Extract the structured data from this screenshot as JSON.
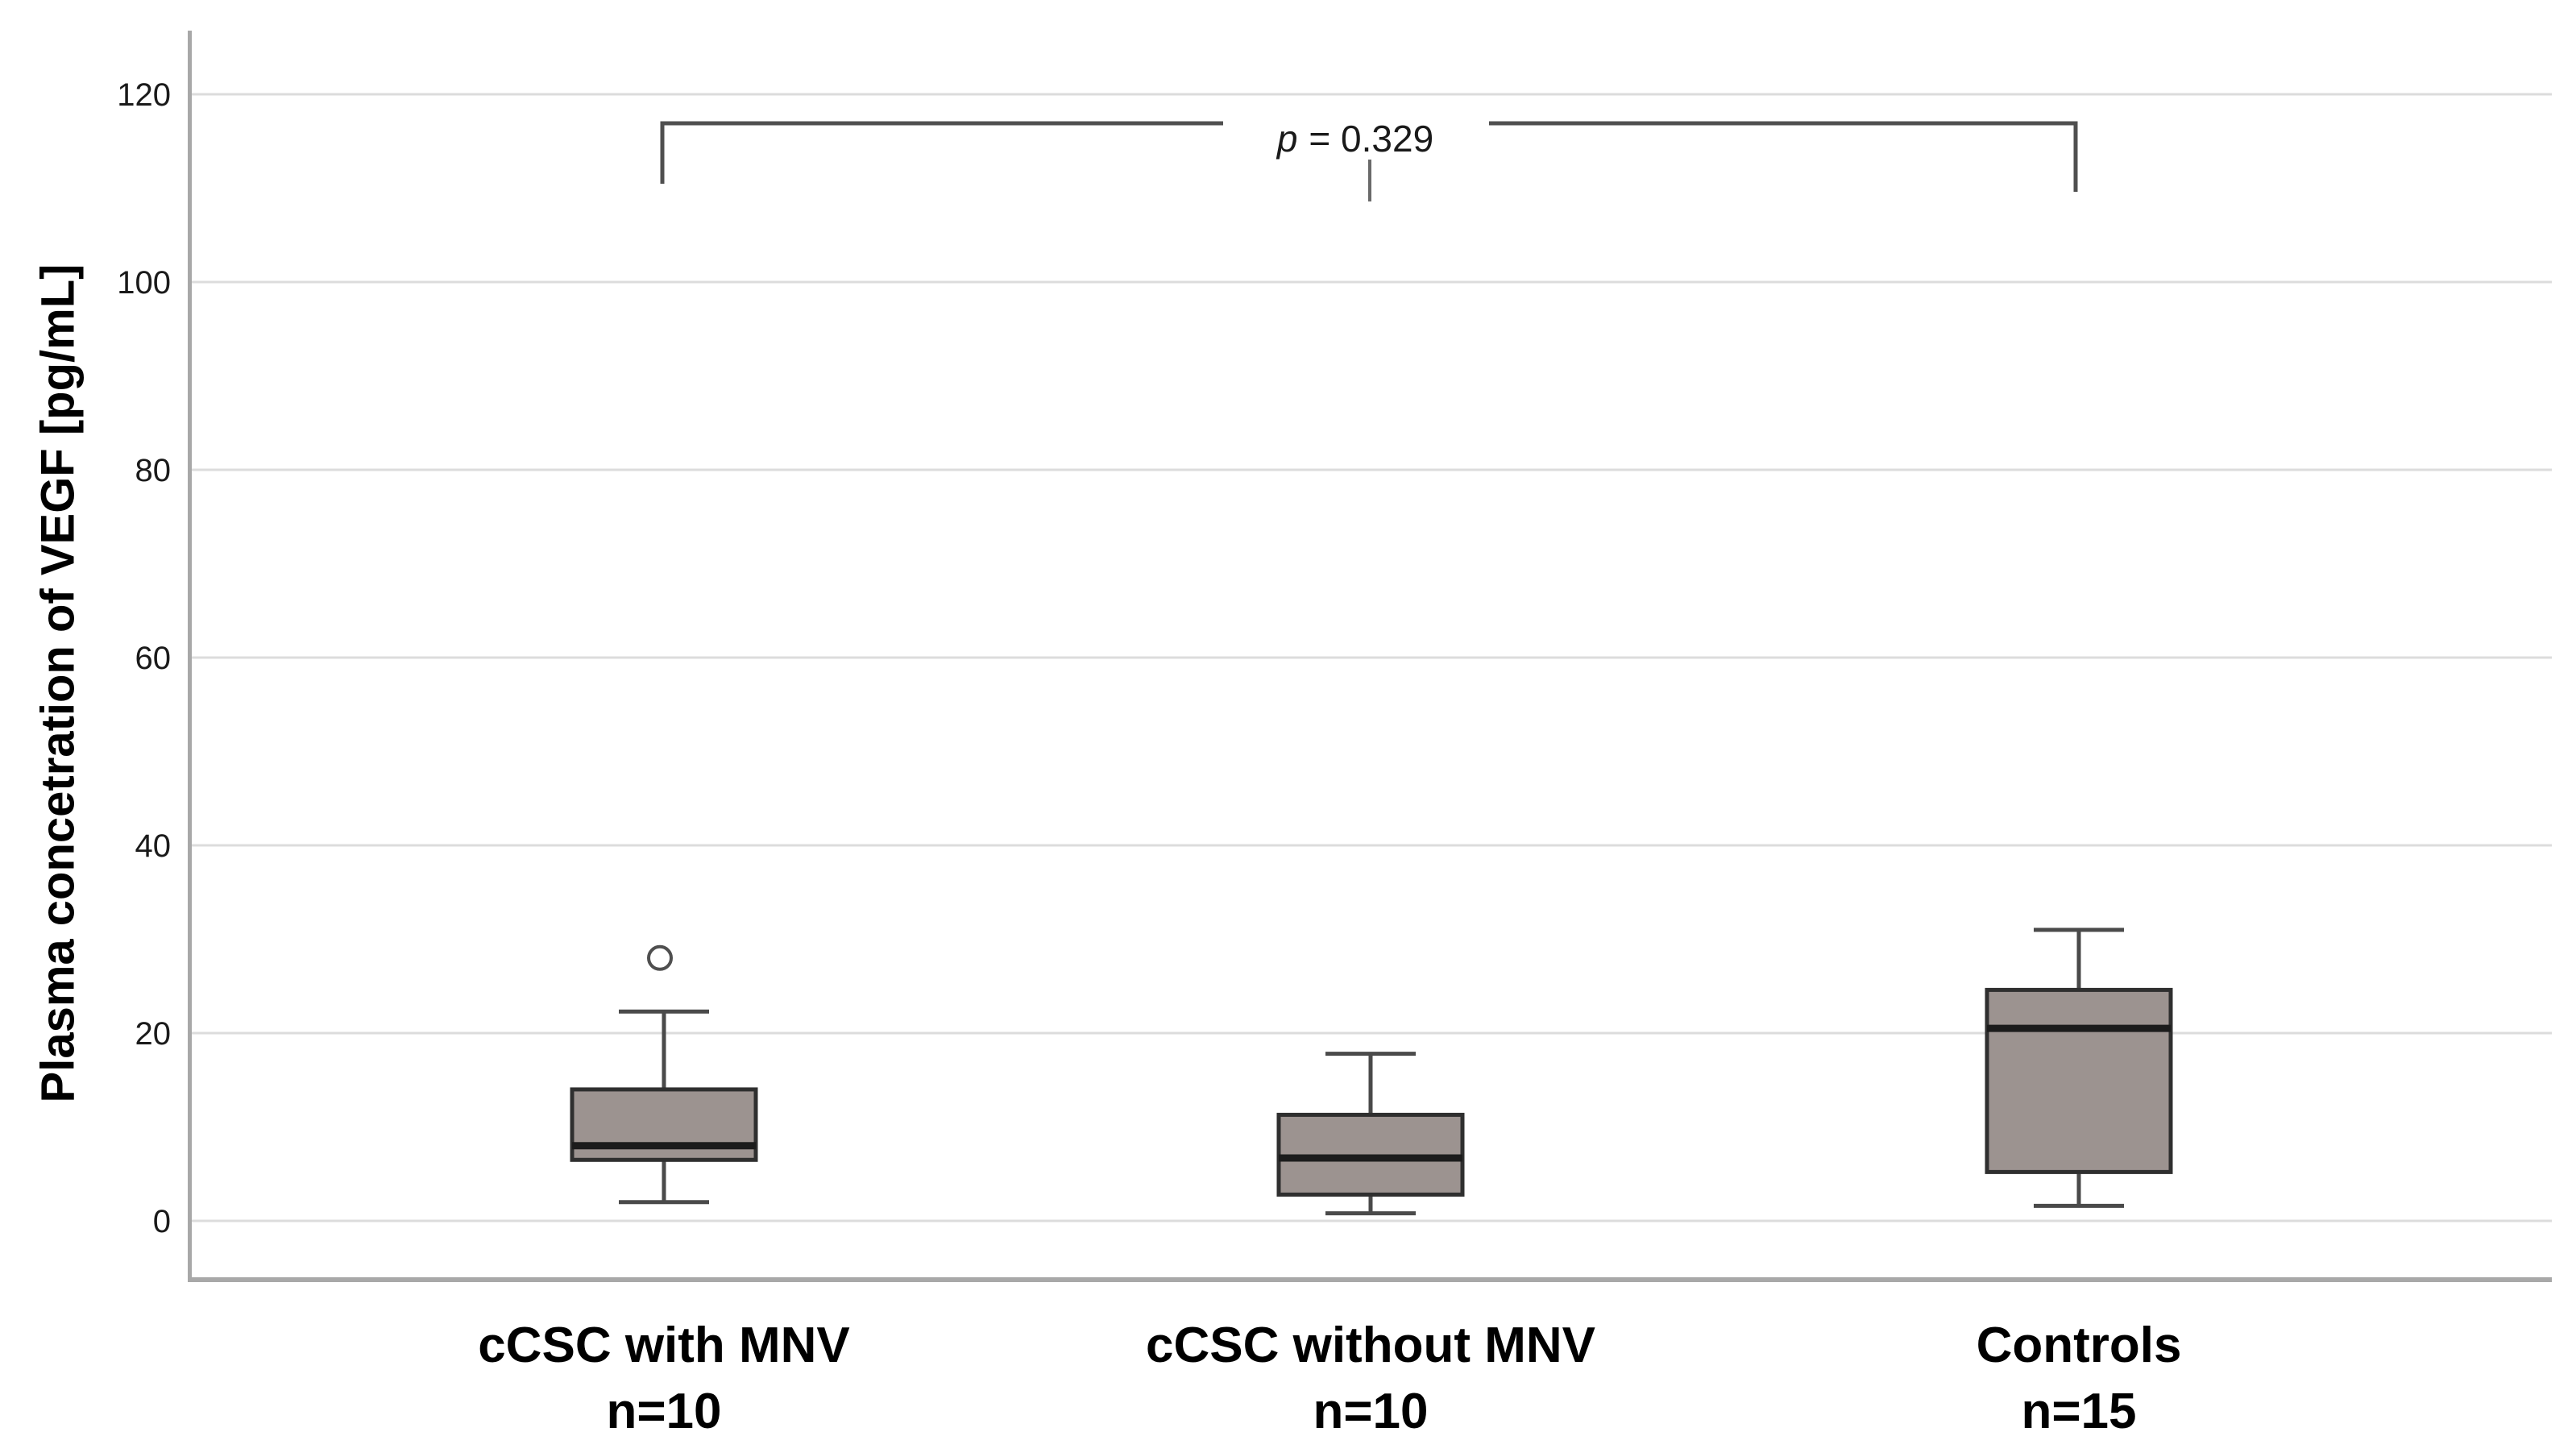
{
  "figure": {
    "background": "#ffffff"
  },
  "chart_data": {
    "type": "boxplot",
    "title": "",
    "xlabel": "",
    "ylabel": "Plasma concetration of VEGF [pg/mL]",
    "ylim": [
      0,
      120
    ],
    "yticks": [
      0,
      20,
      40,
      60,
      80,
      100,
      120
    ],
    "grid": "horizontal",
    "legend": "none",
    "annotation": {
      "full_text": "p = 0.329",
      "p_symbol": "p",
      "p_rest": "= 0.329",
      "bracket_from_group": "cCSC with MNV",
      "bracket_to_group": "Controls"
    },
    "groups": [
      {
        "label": "cCSC with MNV",
        "n_label": "n=10",
        "n": 10,
        "stats": {
          "whisker_low": 2,
          "q1": 6.5,
          "median": 8,
          "q3": 14,
          "whisker_high": 22.3
        },
        "outliers": [
          28
        ]
      },
      {
        "label": "cCSC without MNV",
        "n_label": "n=10",
        "n": 10,
        "stats": {
          "whisker_low": 0.8,
          "q1": 2.8,
          "median": 6.7,
          "q3": 11.3,
          "whisker_high": 17.8
        },
        "outliers": []
      },
      {
        "label": "Controls",
        "n_label": "n=15",
        "n": 15,
        "stats": {
          "whisker_low": 1.6,
          "q1": 5.2,
          "median": 20.5,
          "q3": 24.6,
          "whisker_high": 31
        },
        "outliers": []
      }
    ],
    "colors": {
      "background": "#ffffff",
      "box_fill": "#9c9390",
      "box_border": "#2f2f2f",
      "median": "#1c1c1c",
      "whisker": "#4a4a4a",
      "outlier_stroke": "#4f4f4f",
      "gridline": "#dcdcdc",
      "axis": "#a8a8a8",
      "bracket": "#4f4f4f",
      "bracket_center_tick": "#6a6a6a",
      "text": "#1a1a1a"
    }
  }
}
